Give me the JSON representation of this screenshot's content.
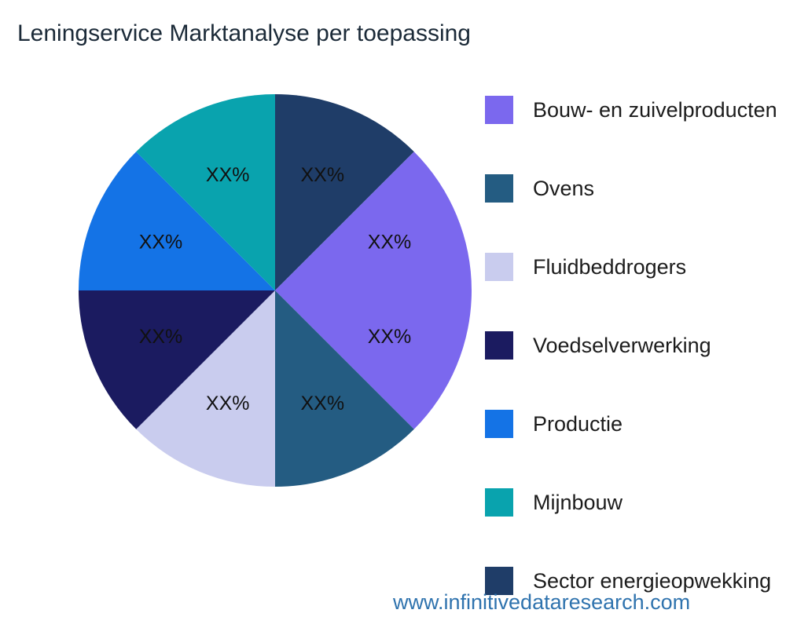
{
  "title": "Leningservice Marktanalyse per toepassing",
  "footer": {
    "url_text": "www.infinitivedataresearch.com",
    "color": "#2f73ae"
  },
  "chart_data": {
    "type": "pie",
    "title": "Leningservice Marktanalyse per toepassing",
    "legend_position": "right",
    "start_angle_deg": 90,
    "direction": "clockwise",
    "value_label_text": "XX%",
    "slices": [
      {
        "category": "Sector energieopwekking",
        "label": "XX%",
        "value": 12.5,
        "color": "#1F3D68"
      },
      {
        "category": "Bouw- en zuivelproducten",
        "label": "XX%",
        "value": 12.5,
        "color": "#7B68EE"
      },
      {
        "category": "Bouw- en zuivelproducten",
        "label": "XX%",
        "value": 12.5,
        "color": "#7B68EE"
      },
      {
        "category": "Ovens",
        "label": "XX%",
        "value": 12.5,
        "color": "#245C82"
      },
      {
        "category": "Fluidbeddrogers",
        "label": "XX%",
        "value": 12.5,
        "color": "#C9CCEE"
      },
      {
        "category": "Voedselverwerking",
        "label": "XX%",
        "value": 12.5,
        "color": "#1B1B60"
      },
      {
        "category": "Productie",
        "label": "XX%",
        "value": 12.5,
        "color": "#1473E6"
      },
      {
        "category": "Mijnbouw",
        "label": "XX%",
        "value": 12.5,
        "color": "#09A3AE"
      }
    ],
    "legend": [
      {
        "label": "Bouw- en zuivelproducten",
        "color": "#7B68EE"
      },
      {
        "label": "Ovens",
        "color": "#245C82"
      },
      {
        "label": "Fluidbeddrogers",
        "color": "#C9CCEE"
      },
      {
        "label": "Voedselverwerking",
        "color": "#1B1B60"
      },
      {
        "label": "Productie",
        "color": "#1473E6"
      },
      {
        "label": "Mijnbouw",
        "color": "#09A3AE"
      },
      {
        "label": "Sector energieopwekking",
        "color": "#1F3D68"
      }
    ]
  }
}
